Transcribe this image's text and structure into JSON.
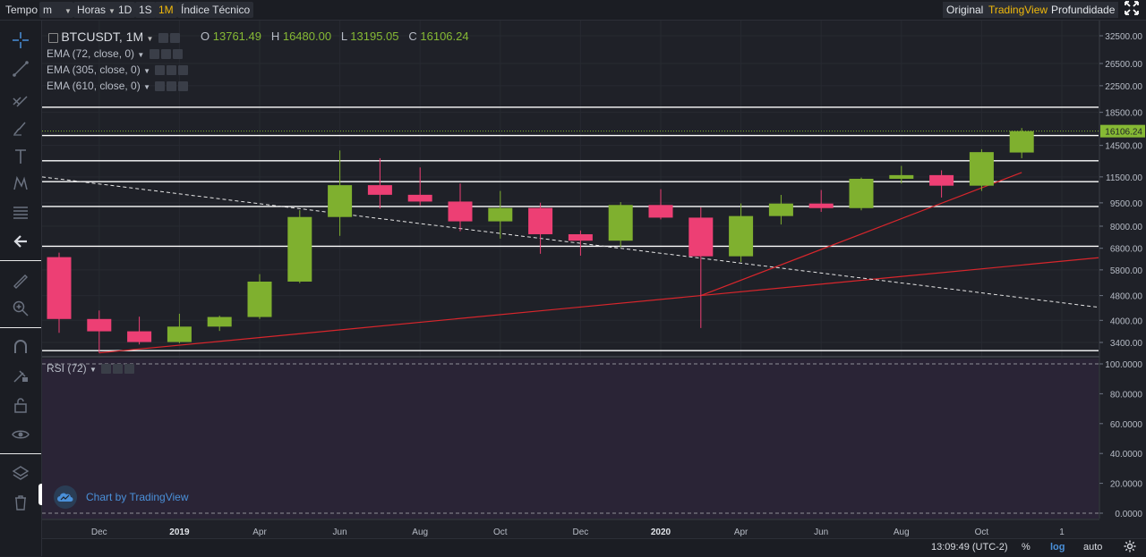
{
  "topbar": {
    "tempo": "Tempo",
    "interval_value": "m",
    "horas": "Horas",
    "tf_1d": "1D",
    "tf_1s": "1S",
    "tf_1m": "1M",
    "indicators": "Índice Técnico",
    "view_original": "Original",
    "view_tradingview": "TradingView",
    "view_depth": "Profundidade"
  },
  "legend": {
    "symbol": "BTCUSDT, 1M",
    "o_label": "O",
    "o_value": "13761.49",
    "h_label": "H",
    "h_value": "16480.00",
    "l_label": "L",
    "l_value": "13195.05",
    "c_label": "C",
    "c_value": "16106.24",
    "ema1": "EMA (72, close, 0)",
    "ema2": "EMA (305, close, 0)",
    "ema3": "EMA (610, close, 0)",
    "rsi": "RSI (72)"
  },
  "watermark": "Chart by TradingView",
  "bottom": {
    "time": "13:09:49 (UTC-2)",
    "percent": "%",
    "log": "log",
    "auto": "auto"
  },
  "colors": {
    "up": "#7fb02f",
    "down": "#ed3f74",
    "accent": "#f0b90b",
    "link": "#4a90d9",
    "trend": "#d8262c",
    "rsi_bg": "#2a2436"
  },
  "chart_data": {
    "type": "candlestick",
    "scale": "log",
    "price_ticks": [
      32500,
      26500,
      22500,
      18500,
      14500,
      11500,
      9500,
      8000,
      6800,
      5800,
      4800,
      4000,
      3400
    ],
    "last_price": "16106.24",
    "x_tick_labels": [
      "Dec",
      "2019",
      "Apr",
      "Jun",
      "Aug",
      "Oct",
      "Dec",
      "2020",
      "Apr",
      "Jun",
      "Aug",
      "Oct",
      "1"
    ],
    "candles": [
      {
        "t": "2018-11",
        "o": 6370,
        "h": 6580,
        "l": 3650,
        "c": 4040
      },
      {
        "t": "2018-12",
        "o": 4040,
        "h": 4300,
        "l": 3150,
        "c": 3690
      },
      {
        "t": "2019-01",
        "o": 3690,
        "h": 4110,
        "l": 3350,
        "c": 3410
      },
      {
        "t": "2019-02",
        "o": 3410,
        "h": 4200,
        "l": 3380,
        "c": 3820
      },
      {
        "t": "2019-03",
        "o": 3820,
        "h": 4140,
        "l": 3700,
        "c": 4100
      },
      {
        "t": "2019-04",
        "o": 4100,
        "h": 5620,
        "l": 4040,
        "c": 5320
      },
      {
        "t": "2019-05",
        "o": 5320,
        "h": 9000,
        "l": 5260,
        "c": 8560
      },
      {
        "t": "2019-06",
        "o": 8560,
        "h": 13970,
        "l": 7450,
        "c": 10820
      },
      {
        "t": "2019-07",
        "o": 10820,
        "h": 13200,
        "l": 9110,
        "c": 10080
      },
      {
        "t": "2019-08",
        "o": 10080,
        "h": 12330,
        "l": 9320,
        "c": 9590
      },
      {
        "t": "2019-09",
        "o": 9590,
        "h": 10950,
        "l": 7710,
        "c": 8290
      },
      {
        "t": "2019-10",
        "o": 8290,
        "h": 10370,
        "l": 7300,
        "c": 9150
      },
      {
        "t": "2019-11",
        "o": 9150,
        "h": 9510,
        "l": 6530,
        "c": 7540
      },
      {
        "t": "2019-12",
        "o": 7540,
        "h": 7750,
        "l": 6440,
        "c": 7190
      },
      {
        "t": "2020-01",
        "o": 7190,
        "h": 9550,
        "l": 6850,
        "c": 9350
      },
      {
        "t": "2020-02",
        "o": 9350,
        "h": 10500,
        "l": 8410,
        "c": 8520
      },
      {
        "t": "2020-03",
        "o": 8520,
        "h": 9190,
        "l": 3780,
        "c": 6410
      },
      {
        "t": "2020-04",
        "o": 6410,
        "h": 9460,
        "l": 6150,
        "c": 8620
      },
      {
        "t": "2020-05",
        "o": 8620,
        "h": 10070,
        "l": 8100,
        "c": 9450
      },
      {
        "t": "2020-06",
        "o": 9450,
        "h": 10440,
        "l": 8890,
        "c": 9140
      },
      {
        "t": "2020-07",
        "o": 9140,
        "h": 11440,
        "l": 8990,
        "c": 11340
      },
      {
        "t": "2020-08",
        "o": 11340,
        "h": 12470,
        "l": 10950,
        "c": 11650
      },
      {
        "t": "2020-09",
        "o": 11650,
        "h": 12070,
        "l": 9880,
        "c": 10780
      },
      {
        "t": "2020-10",
        "o": 10780,
        "h": 14100,
        "l": 10370,
        "c": 13800
      },
      {
        "t": "2020-11",
        "o": 13761.49,
        "h": 16480,
        "l": 13195.05,
        "c": 16106.24
      }
    ],
    "horizontal_levels": [
      19200,
      15600,
      12950,
      11100,
      9250,
      6900,
      3200
    ],
    "rsi_ticks": [
      "100.0000",
      "80.0000",
      "60.0000",
      "40.0000",
      "20.0000",
      "0.0000"
    ]
  }
}
